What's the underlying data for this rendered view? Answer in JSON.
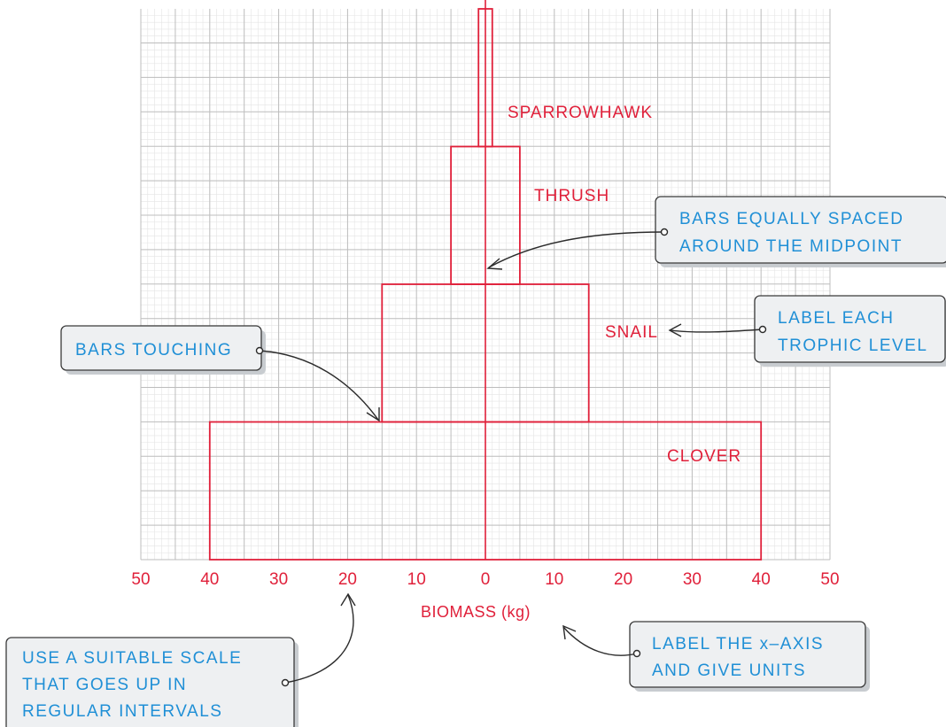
{
  "chart_data": {
    "type": "bar",
    "subtype": "pyramid of biomass",
    "xlabel": "BIOMASS (kg)",
    "xlim": [
      -50,
      50
    ],
    "x_ticks": [
      -50,
      -40,
      -30,
      -20,
      -10,
      0,
      10,
      20,
      30,
      40,
      50
    ],
    "x_tick_labels": [
      "50",
      "40",
      "30",
      "20",
      "10",
      "0",
      "10",
      "20",
      "30",
      "40",
      "50"
    ],
    "grid": true,
    "levels": [
      {
        "name": "CLOVER",
        "biomass_kg": 80
      },
      {
        "name": "SNAIL",
        "biomass_kg": 30
      },
      {
        "name": "THRUSH",
        "biomass_kg": 10
      },
      {
        "name": "SPARROWHAWK",
        "biomass_kg": 2
      }
    ],
    "colors": {
      "bar": "#e0203a",
      "grid_major": "#bdbdbd",
      "grid_minor": "#e4e4e4",
      "note_text": "#1f8fd6"
    }
  },
  "annotations": [
    {
      "id": "bars-equally-spaced",
      "lines": [
        "BARS  EQUALLY  SPACED",
        "AROUND  THE  MIDPOINT"
      ]
    },
    {
      "id": "label-each-level",
      "lines": [
        "LABEL  EACH",
        "TROPHIC  LEVEL"
      ]
    },
    {
      "id": "bars-touching",
      "lines": [
        "BARS  TOUCHING"
      ]
    },
    {
      "id": "suitable-scale",
      "lines": [
        "USE  A  SUITABLE  SCALE",
        "THAT  GOES  UP  IN",
        "REGULAR  INTERVALS"
      ]
    },
    {
      "id": "label-x-axis",
      "lines": [
        "LABEL  THE  x–AXIS",
        "AND  GIVE  UNITS"
      ]
    }
  ]
}
